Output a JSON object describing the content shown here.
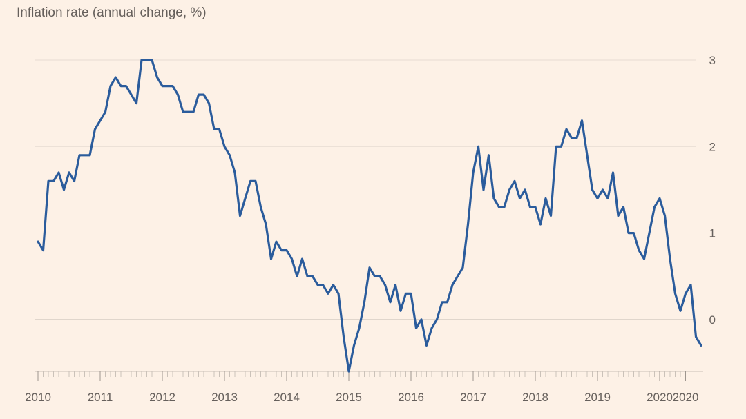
{
  "chart_data": {
    "type": "line",
    "title": "Inflation rate (annual change, %)",
    "xlabel": "",
    "ylabel": "",
    "ylim": [
      -0.6,
      3
    ],
    "y_ticks": [
      "0",
      "1",
      "2",
      "3"
    ],
    "x_ticks": [
      "2010",
      "2011",
      "2012",
      "2013",
      "2014",
      "2015",
      "2016",
      "2017",
      "2018",
      "2019",
      "2020",
      "2020"
    ],
    "grid": "horizontal",
    "legend": "none",
    "line_color": "#2b5c9c",
    "x_start": "Jan 2010",
    "x_end": "May 2020",
    "series": [
      {
        "values": [
          0.9,
          0.8,
          1.6,
          1.6,
          1.7,
          1.5,
          1.7,
          1.6,
          1.9,
          1.9,
          1.9,
          2.2,
          2.3,
          2.4,
          2.7,
          2.8,
          2.7,
          2.7,
          2.6,
          2.5,
          3.0,
          3.0,
          3.0,
          2.8,
          2.7,
          2.7,
          2.7,
          2.6,
          2.4,
          2.4,
          2.4,
          2.6,
          2.6,
          2.5,
          2.2,
          2.2,
          2.0,
          1.9,
          1.7,
          1.2,
          1.4,
          1.6,
          1.6,
          1.3,
          1.1,
          0.7,
          0.9,
          0.8,
          0.8,
          0.7,
          0.5,
          0.7,
          0.5,
          0.5,
          0.4,
          0.4,
          0.3,
          0.4,
          0.3,
          -0.2,
          -0.6,
          -0.3,
          -0.1,
          0.2,
          0.6,
          0.5,
          0.5,
          0.4,
          0.2,
          0.4,
          0.1,
          0.3,
          0.3,
          -0.1,
          0.0,
          -0.3,
          -0.1,
          0.0,
          0.2,
          0.2,
          0.4,
          0.5,
          0.6,
          1.1,
          1.7,
          2.0,
          1.5,
          1.9,
          1.4,
          1.3,
          1.3,
          1.5,
          1.6,
          1.4,
          1.5,
          1.3,
          1.3,
          1.1,
          1.4,
          1.2,
          2.0,
          2.0,
          2.2,
          2.1,
          2.1,
          2.3,
          1.9,
          1.5,
          1.4,
          1.5,
          1.4,
          1.7,
          1.2,
          1.3,
          1.0,
          1.0,
          0.8,
          0.7,
          1.0,
          1.3,
          1.4,
          1.2,
          0.7,
          0.3,
          0.1,
          0.3,
          0.4,
          -0.2,
          -0.3
        ]
      }
    ]
  }
}
